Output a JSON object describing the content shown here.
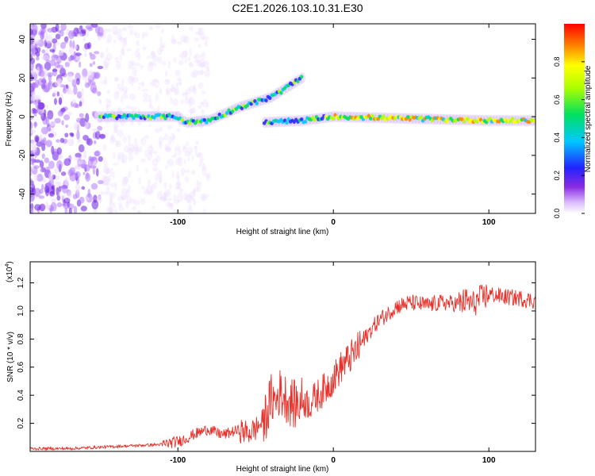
{
  "title": "C2E1.2026.103.10.31.E30",
  "chart_data": [
    {
      "type": "heatmap",
      "name": "spectrogram",
      "xlabel": "Height of straight line (km)",
      "ylabel": "Frequency (Hz)",
      "xlim": [
        -195,
        130
      ],
      "ylim": [
        -50,
        48
      ],
      "xticks": [
        -100,
        0,
        100
      ],
      "xtick_labels": [
        "-100",
        "0",
        "100"
      ],
      "yticks": [
        -40,
        -20,
        0,
        20,
        40
      ],
      "ytick_labels": [
        "-40",
        "-20",
        "0",
        "20",
        "40"
      ],
      "colorbar": {
        "label": "Normalized spectral amplitude",
        "range": [
          0,
          1
        ],
        "ticks": [
          0.0,
          0.2,
          0.4,
          0.6,
          0.8
        ],
        "tick_labels": [
          "0.0",
          "0.2",
          "0.4",
          "0.6",
          "0.8"
        ]
      },
      "ridge": [
        {
          "x": -150,
          "y": 0
        },
        {
          "x": -100,
          "y": 0
        },
        {
          "x": -95,
          "y": -3
        },
        {
          "x": -80,
          "y": -2
        },
        {
          "x": -60,
          "y": 5
        },
        {
          "x": -40,
          "y": 10
        },
        {
          "x": -30,
          "y": 15
        },
        {
          "x": -20,
          "y": 20
        },
        {
          "x": -45,
          "y": -3
        },
        {
          "x": -20,
          "y": -2
        },
        {
          "x": 0,
          "y": 0
        },
        {
          "x": 50,
          "y": -1
        },
        {
          "x": 100,
          "y": -2
        },
        {
          "x": 130,
          "y": -2
        }
      ]
    },
    {
      "type": "line",
      "name": "snr",
      "xlabel": "Height of straight line (km)",
      "ylabel": "SNR (10 * v/v)",
      "y_multiplier_label": "(x10",
      "y_multiplier_exp": "4",
      "xlim": [
        -195,
        130
      ],
      "ylim": [
        0,
        1.35
      ],
      "xticks": [
        -100,
        0,
        100
      ],
      "xtick_labels": [
        "-100",
        "0",
        "100"
      ],
      "yticks": [
        0.2,
        0.4,
        0.6,
        0.8,
        1.0,
        1.2
      ],
      "ytick_labels": [
        "0.2",
        "0.4",
        "0.6",
        "0.8",
        "1.0",
        "1.2"
      ],
      "series": [
        {
          "name": "SNR",
          "color": "#e8312a",
          "x": [
            -195,
            -170,
            -150,
            -130,
            -110,
            -100,
            -95,
            -90,
            -85,
            -80,
            -75,
            -70,
            -65,
            -60,
            -55,
            -50,
            -45,
            -42,
            -40,
            -37,
            -35,
            -30,
            -25,
            -20,
            -15,
            -10,
            -5,
            0,
            5,
            10,
            15,
            20,
            25,
            30,
            35,
            40,
            50,
            60,
            70,
            80,
            85,
            90,
            95,
            100,
            110,
            120,
            130
          ],
          "y": [
            0.02,
            0.02,
            0.03,
            0.04,
            0.05,
            0.07,
            0.09,
            0.12,
            0.14,
            0.16,
            0.13,
            0.12,
            0.14,
            0.15,
            0.13,
            0.16,
            0.22,
            0.3,
            0.38,
            0.35,
            0.42,
            0.38,
            0.33,
            0.36,
            0.34,
            0.4,
            0.45,
            0.52,
            0.6,
            0.66,
            0.72,
            0.8,
            0.88,
            0.94,
            0.98,
            1.03,
            1.06,
            1.04,
            1.06,
            1.05,
            1.07,
            1.05,
            1.09,
            1.12,
            1.1,
            1.09,
            1.07
          ]
        }
      ]
    }
  ]
}
